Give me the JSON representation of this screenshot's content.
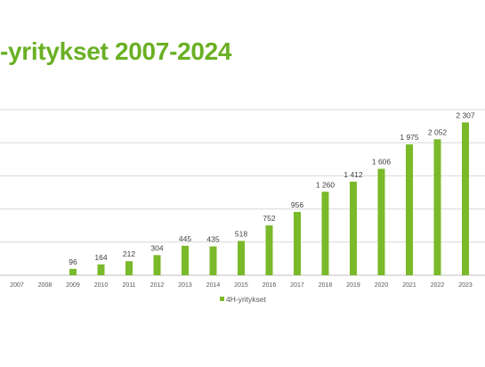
{
  "title": "-yritykset 2007-2024",
  "colors": {
    "accent": "#6ab023",
    "bar": "#7ab929",
    "grid": "#d9d9d9",
    "axis": "#bfbfbf"
  },
  "chart_data": {
    "type": "bar",
    "title": "",
    "xlabel": "",
    "ylabel": "",
    "categories": [
      "2007",
      "2008",
      "2009",
      "2010",
      "2011",
      "2012",
      "2013",
      "2014",
      "2015",
      "2016",
      "2017",
      "2018",
      "2019",
      "2020",
      "2021",
      "2022",
      "2023"
    ],
    "series": [
      {
        "name": "4H-yritykset",
        "values": [
          null,
          null,
          96,
          164,
          212,
          304,
          445,
          435,
          518,
          752,
          956,
          1260,
          1412,
          1606,
          1975,
          2052,
          2307
        ],
        "labels": [
          "",
          "",
          "96",
          "164",
          "212",
          "304",
          "445",
          "435",
          "518",
          "752",
          "956",
          "1 260",
          "1 412",
          "1 606",
          "1 975",
          "2 052",
          "2 307"
        ]
      }
    ],
    "ylim": [
      0,
      2500
    ],
    "gridlines": [
      0,
      500,
      1000,
      1500,
      2000,
      2500
    ],
    "grid": true,
    "legend_position": "bottom-center"
  }
}
